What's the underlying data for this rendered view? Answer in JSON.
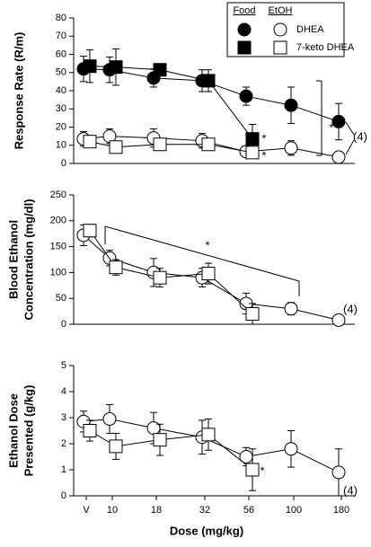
{
  "chart_data": [
    {
      "type": "line",
      "y_label": "Response Rate (R/m)",
      "legend": {
        "headers": [
          "Food",
          "EtOH"
        ]
      },
      "ylim": [
        0,
        80
      ],
      "yticks": [
        0,
        10,
        20,
        30,
        40,
        50,
        60,
        70,
        80
      ],
      "series": [
        {
          "name": "DHEA",
          "group": "Food",
          "marker": "circle",
          "filled": true,
          "color": "#000000",
          "values": [
            52,
            51.5,
            47,
            45.5,
            37,
            32,
            23
          ],
          "error": [
            7,
            7,
            5,
            6,
            5,
            10,
            10
          ]
        },
        {
          "name": "7-keto DHEA",
          "group": "Food",
          "marker": "square",
          "filled": true,
          "color": "#000000",
          "values": [
            53.5,
            53,
            51.5,
            45.5,
            13.5,
            null,
            null
          ],
          "error": [
            9,
            10,
            3,
            6,
            8,
            null,
            null
          ]
        },
        {
          "name": "DHEA",
          "group": "EtOH",
          "marker": "circle",
          "filled": false,
          "color": "#000000",
          "values": [
            13.5,
            15,
            14,
            12.5,
            6.5,
            8.5,
            3.5
          ],
          "error": [
            4,
            4,
            5,
            4,
            3,
            4,
            3
          ]
        },
        {
          "name": "7-keto DHEA",
          "group": "EtOH",
          "marker": "square",
          "filled": false,
          "color": "#000000",
          "values": [
            12,
            9,
            10.5,
            10.5,
            6,
            null,
            null
          ],
          "error": [
            3,
            3,
            3,
            3,
            3,
            null,
            null
          ]
        }
      ],
      "annotations": [
        "*",
        "*",
        "*",
        "(4)"
      ]
    },
    {
      "type": "line",
      "y_label": [
        "Blood Ethanol",
        "Concentration (mg/dl)"
      ],
      "ylim": [
        0,
        250
      ],
      "yticks": [
        0,
        50,
        100,
        150,
        200,
        250
      ],
      "series": [
        {
          "marker": "circle",
          "filled": false,
          "color": "#000000",
          "values": [
            172,
            128,
            100,
            90,
            40,
            30,
            8
          ],
          "error": [
            20,
            15,
            27,
            18,
            20,
            12,
            null
          ]
        },
        {
          "marker": "square",
          "filled": false,
          "color": "#000000",
          "values": [
            181,
            110,
            90,
            98,
            20,
            null,
            null
          ],
          "error": [
            12,
            15,
            18,
            20,
            20,
            null,
            null
          ]
        }
      ],
      "annotations": [
        "*",
        "(4)"
      ]
    },
    {
      "type": "line",
      "y_label": [
        "Ethanol Dose",
        "Presented (g/kg)"
      ],
      "x_label": "Dose (mg/kg)",
      "categories": [
        "V",
        "10",
        "18",
        "32",
        "56",
        "100",
        "180"
      ],
      "ylim": [
        0,
        5
      ],
      "yticks": [
        0,
        1,
        2,
        3,
        4,
        5
      ],
      "series": [
        {
          "marker": "circle",
          "filled": false,
          "color": "#000000",
          "values": [
            2.85,
            2.95,
            2.6,
            2.25,
            1.5,
            1.8,
            0.9
          ],
          "error": [
            0.4,
            0.55,
            0.6,
            0.65,
            0.35,
            0.7,
            0.9
          ]
        },
        {
          "marker": "square",
          "filled": false,
          "color": "#000000",
          "values": [
            2.5,
            1.9,
            2.15,
            2.35,
            1.0,
            null,
            null
          ],
          "error": [
            0.4,
            0.5,
            0.6,
            0.6,
            0.8,
            null,
            null
          ]
        }
      ],
      "annotations": [
        "*",
        "(4)"
      ]
    }
  ]
}
